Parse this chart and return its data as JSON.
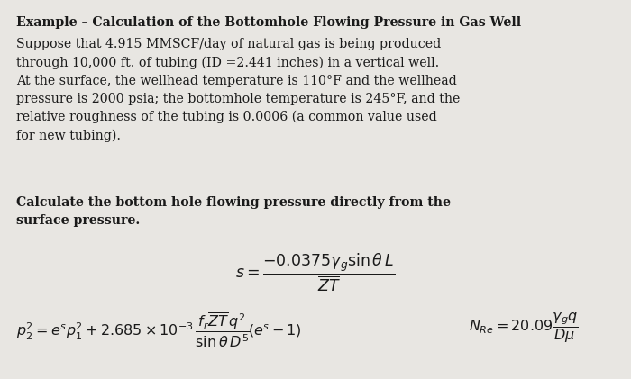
{
  "bg_color": "#e8e6e2",
  "text_color": "#1a1a1a",
  "title": "Example – Calculation of the Bottomhole Flowing Pressure in Gas Well",
  "body_text": "Suppose that 4.915 MMSCF/day of natural gas is being produced\nthrough 10,000 ft. of tubing (ID =2.441 inches) in a vertical well.\nAt the surface, the wellhead temperature is 110°F and the wellhead\npressure is 2000 psia; the bottomhole temperature is 245°F, and the\nrelative roughness of the tubing is 0.0006 (a common value used\nfor new tubing).",
  "bold_text": "Calculate the bottom hole flowing pressure directly from the\nsurface pressure.",
  "title_fontsize": 10.2,
  "body_fontsize": 10.2,
  "formula_fontsize": 11.5
}
